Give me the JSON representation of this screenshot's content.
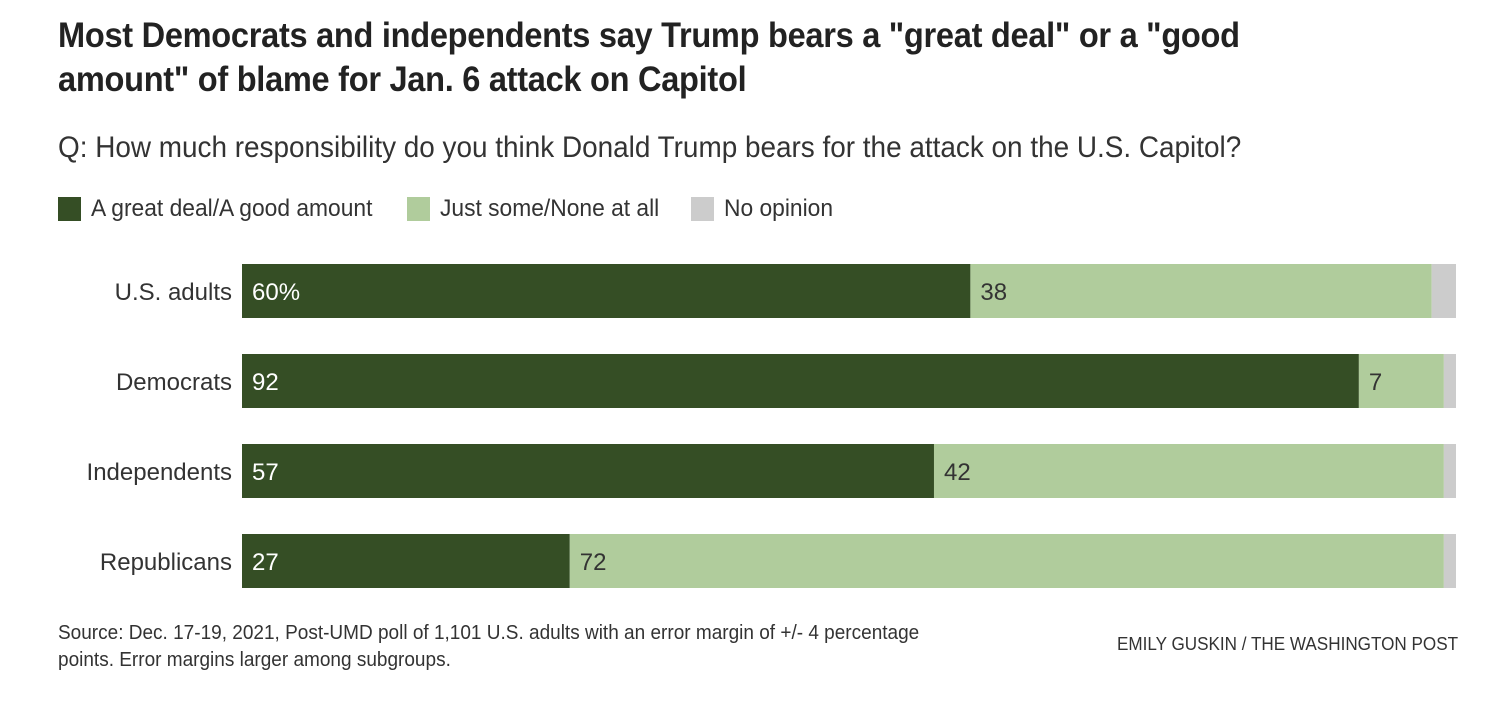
{
  "header": {
    "title": "Most Democrats and independents say Trump bears a \"great deal\" or a \"good amount\" of blame for Jan. 6 attack on Capitol",
    "subtitle": "Q: How much responsibility do you think Donald Trump bears for the attack on the U.S. Capitol?"
  },
  "footer": {
    "source": "Source: Dec. 17-19, 2021, Post-UMD poll of 1,101 U.S. adults with an error margin of +/- 4 percentage points. Error margins larger among subgroups.",
    "credit": "EMILY GUSKIN / THE WASHINGTON POST"
  },
  "chart_data": {
    "type": "bar",
    "orientation": "horizontal",
    "stacked": true,
    "title": "Most Democrats and independents say Trump bears a \"great deal\" or a \"good amount\" of blame for Jan. 6 attack on Capitol",
    "subtitle": "Q: How much responsibility do you think Donald Trump bears for the attack on the U.S. Capitol?",
    "xlabel": "",
    "ylabel": "",
    "xlim": [
      0,
      100
    ],
    "grid": false,
    "legend_position": "top-left",
    "categories": [
      "U.S. adults",
      "Democrats",
      "Independents",
      "Republicans"
    ],
    "series": [
      {
        "name": "A great deal/A good amount",
        "color": "#354e25",
        "label_color": "#ffffff",
        "values": [
          60,
          92,
          57,
          27
        ],
        "labels": [
          "60%",
          "92",
          "57",
          "27"
        ]
      },
      {
        "name": "Just some/None at all",
        "color": "#b0cc9c",
        "label_color": "#333333",
        "values": [
          38,
          7,
          42,
          72
        ],
        "labels": [
          "38",
          "7",
          "42",
          "72"
        ]
      },
      {
        "name": "No opinion",
        "color": "#cccccc",
        "label_color": "#333333",
        "values": [
          2,
          1,
          1,
          1
        ],
        "labels": [
          "",
          "",
          "",
          ""
        ]
      }
    ]
  }
}
